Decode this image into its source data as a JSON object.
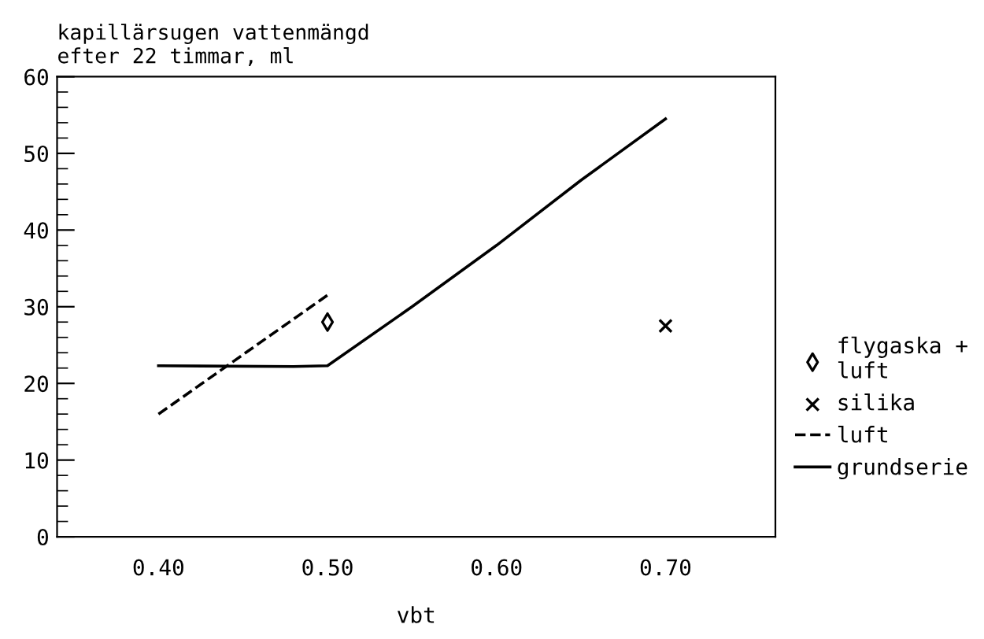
{
  "chart_data": {
    "type": "line",
    "title": "kapillärsugen vattenmängd\nefter 22 timmar, ml",
    "xlabel": "vbt",
    "xlim": [
      0.34,
      0.765
    ],
    "ylim": [
      0,
      60
    ],
    "xticks": [
      {
        "value": 0.4,
        "label": "0.40"
      },
      {
        "value": 0.5,
        "label": "0.50"
      },
      {
        "value": 0.6,
        "label": "0.60"
      },
      {
        "value": 0.7,
        "label": "0.70"
      }
    ],
    "yticks": [
      0,
      10,
      20,
      30,
      40,
      50,
      60
    ],
    "grid": false,
    "legend": "right",
    "series": [
      {
        "name": "flygaska +\nluft",
        "type": "scatter",
        "marker": "diamond",
        "color": "#000000",
        "x": [
          0.5
        ],
        "values": [
          28
        ]
      },
      {
        "name": "silika",
        "type": "scatter",
        "marker": "cross",
        "color": "#000000",
        "x": [
          0.7
        ],
        "values": [
          27.5
        ]
      },
      {
        "name": "luft",
        "line_style": "dashed",
        "marker": "none",
        "color": "#000000",
        "x": [
          0.4,
          0.5
        ],
        "values": [
          16,
          31.5
        ]
      },
      {
        "name": "grundserie",
        "line_style": "solid",
        "marker": "none",
        "color": "#000000",
        "x": [
          0.4,
          0.48,
          0.5,
          0.55,
          0.6,
          0.65,
          0.7
        ],
        "values": [
          22.3,
          22.2,
          22.3,
          30,
          38,
          46.5,
          54.5
        ]
      }
    ]
  }
}
